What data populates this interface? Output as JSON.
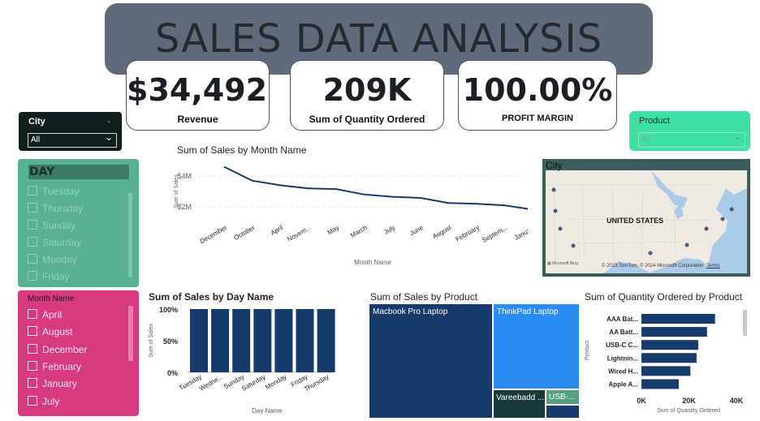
{
  "header": {
    "title": "SALES DATA ANALYSIS"
  },
  "kpis": [
    {
      "value": "$34,492...",
      "label": "Revenue"
    },
    {
      "value": "209K",
      "label": "Sum of Quantity Ordered"
    },
    {
      "value": "100.00%",
      "label": "PROFIT MARGIN"
    }
  ],
  "slicers": {
    "city": {
      "title": "City",
      "selected": "All"
    },
    "product": {
      "title": "Product",
      "selected": "All"
    },
    "day": {
      "title": "DAY",
      "items": [
        "Tuesday",
        "Thursday",
        "Sunday",
        "Saturday",
        "Monday",
        "Friday"
      ]
    },
    "month": {
      "title": "Month Name",
      "items": [
        "April",
        "August",
        "December",
        "February",
        "January",
        "July"
      ]
    }
  },
  "map": {
    "title": "City",
    "label": "UNITED STATES",
    "credit": "© 2023 TomTom, © 2024 Microsoft Corporation",
    "terms": "Terms",
    "brand": "Microsoft Bing"
  },
  "colors": {
    "primary": "#143b6b",
    "treemap_light": "#2a8bf2",
    "treemap_dark": "#16393c",
    "treemap_green": "#52a080",
    "day_slicer": "#58b095",
    "month_slicer": "#d63a7f",
    "product_slicer": "#3fe0a4"
  },
  "chart_data": [
    {
      "type": "line",
      "title": "Sum of Sales by Month Name",
      "xlabel": "Month Name",
      "ylabel": "Sum of Sales",
      "categories": [
        "December",
        "October",
        "April",
        "Novem...",
        "May",
        "March",
        "July",
        "June",
        "August",
        "February",
        "Septem...",
        "January"
      ],
      "values": [
        4.6,
        3.7,
        3.4,
        3.2,
        3.15,
        2.8,
        2.65,
        2.58,
        2.25,
        2.2,
        2.1,
        1.82
      ],
      "y_ticks": [
        "$2M",
        "$4M"
      ],
      "ylim": [
        1,
        5
      ],
      "grid": true
    },
    {
      "type": "bar",
      "title": "Sum of Sales by Day Name",
      "xlabel": "Day Name",
      "ylabel": "Sum of Sales",
      "categories": [
        "Tuesday",
        "Wedne...",
        "Sunday",
        "Saturday",
        "Monday",
        "Friday",
        "Thursday"
      ],
      "values": [
        100,
        100,
        100,
        100,
        100,
        100,
        100
      ],
      "y_ticks": [
        "0%",
        "50%",
        "100%"
      ],
      "ylim": [
        0,
        100
      ]
    },
    {
      "type": "treemap",
      "title": "Sum of Sales by Product",
      "labels": [
        "Macbook Pro Laptop",
        "ThinkPad Laptop",
        "Vareebadd ...",
        "USB-..."
      ]
    },
    {
      "type": "bar",
      "orientation": "horizontal",
      "title": "Sum of Quantity Ordered by Product",
      "xlabel": "Sum of Quantity Ordered",
      "ylabel": "Product",
      "categories": [
        "AAA Bat...",
        "AA Batt...",
        "USB-C C...",
        "Lightnin...",
        "Wired H...",
        "Apple A..."
      ],
      "values": [
        31000,
        27600,
        23900,
        23200,
        20600,
        15700
      ],
      "x_ticks": [
        "0K",
        "20K",
        "40K"
      ],
      "xlim": [
        0,
        40000
      ]
    }
  ]
}
